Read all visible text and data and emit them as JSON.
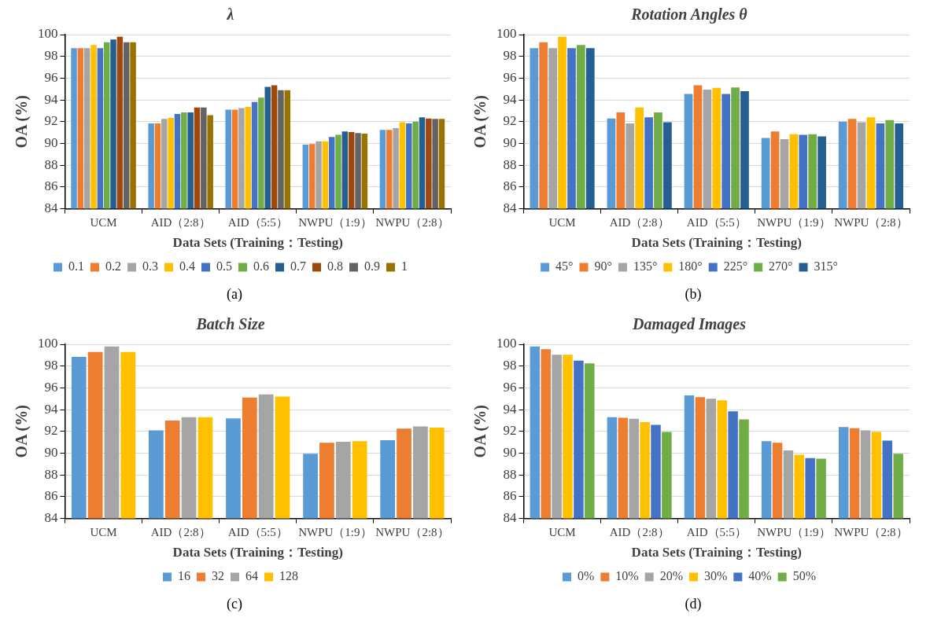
{
  "chart_data": [
    {
      "type": "bar",
      "title": "λ",
      "xlabel": "Data Sets (Training：Testing)",
      "ylabel": "OA (%)",
      "categories": [
        "UCM",
        "AID（2:8）",
        "AID（5:5）",
        "NWPU（1:9）",
        "NWPU（2:8）"
      ],
      "ylim": [
        84,
        100
      ],
      "yticks": [
        84,
        86,
        88,
        90,
        92,
        94,
        96,
        98,
        100
      ],
      "grid": "y",
      "legend": "bottom",
      "annotations": [
        "(a)"
      ],
      "series": [
        {
          "name": "0.1",
          "color": "#5b9bd5",
          "values": [
            98.75,
            91.85,
            93.1,
            89.9,
            91.25
          ]
        },
        {
          "name": "0.2",
          "color": "#ed7d31",
          "values": [
            98.75,
            91.85,
            93.1,
            89.95,
            91.25
          ]
        },
        {
          "name": "0.3",
          "color": "#a5a5a5",
          "values": [
            98.75,
            92.25,
            93.25,
            90.2,
            91.4
          ]
        },
        {
          "name": "0.4",
          "color": "#ffc000",
          "values": [
            99.05,
            92.35,
            93.35,
            90.2,
            91.95
          ]
        },
        {
          "name": "0.5",
          "color": "#4472c4",
          "values": [
            98.75,
            92.7,
            93.8,
            90.6,
            91.85
          ]
        },
        {
          "name": "0.6",
          "color": "#70ad47",
          "values": [
            99.3,
            92.85,
            94.2,
            90.8,
            92.0
          ]
        },
        {
          "name": "0.7",
          "color": "#255e91",
          "values": [
            99.55,
            92.85,
            95.2,
            91.1,
            92.4
          ]
        },
        {
          "name": "0.8",
          "color": "#9e480e",
          "values": [
            99.8,
            93.3,
            95.35,
            91.05,
            92.3
          ]
        },
        {
          "name": "0.9",
          "color": "#636363",
          "values": [
            99.3,
            93.3,
            94.9,
            90.95,
            92.25
          ]
        },
        {
          "name": "1",
          "color": "#997300",
          "values": [
            99.3,
            92.6,
            94.9,
            90.9,
            92.25
          ]
        }
      ]
    },
    {
      "type": "bar",
      "title": "Rotation Angles θ",
      "xlabel": "Data Sets (Training：Testing)",
      "ylabel": "OA (%)",
      "categories": [
        "UCM",
        "AID（2:8）",
        "AID（5:5）",
        "NWPU（1:9）",
        "NWPU（2:8）"
      ],
      "ylim": [
        84,
        100
      ],
      "yticks": [
        84,
        86,
        88,
        90,
        92,
        94,
        96,
        98,
        100
      ],
      "grid": "y",
      "legend": "bottom",
      "annotations": [
        "(b)"
      ],
      "series": [
        {
          "name": "45°",
          "color": "#5b9bd5",
          "values": [
            98.75,
            92.3,
            94.55,
            90.5,
            92.0
          ]
        },
        {
          "name": "90°",
          "color": "#ed7d31",
          "values": [
            99.3,
            92.85,
            95.35,
            91.1,
            92.25
          ]
        },
        {
          "name": "135°",
          "color": "#a5a5a5",
          "values": [
            98.75,
            91.85,
            94.95,
            90.4,
            91.95
          ]
        },
        {
          "name": "180°",
          "color": "#ffc000",
          "values": [
            99.8,
            93.3,
            95.1,
            90.85,
            92.4
          ]
        },
        {
          "name": "225°",
          "color": "#4472c4",
          "values": [
            98.75,
            92.4,
            94.55,
            90.8,
            91.85
          ]
        },
        {
          "name": "270°",
          "color": "#70ad47",
          "values": [
            99.05,
            92.85,
            95.15,
            90.85,
            92.15
          ]
        },
        {
          "name": "315°",
          "color": "#255e91",
          "values": [
            98.75,
            91.95,
            94.8,
            90.65,
            91.85
          ]
        }
      ]
    },
    {
      "type": "bar",
      "title": "Batch Size",
      "xlabel": "Data Sets (Training：Testing)",
      "ylabel": "OA (%)",
      "categories": [
        "UCM",
        "AID（2:8）",
        "AID（5:5）",
        "NWPU（1:9）",
        "NWPU（2:8）"
      ],
      "ylim": [
        84,
        100
      ],
      "yticks": [
        84,
        86,
        88,
        90,
        92,
        94,
        96,
        98,
        100
      ],
      "grid": "y",
      "legend": "bottom",
      "annotations": [
        "(c)"
      ],
      "series": [
        {
          "name": "16",
          "color": "#5b9bd5",
          "values": [
            98.85,
            92.1,
            93.2,
            89.95,
            91.2
          ]
        },
        {
          "name": "32",
          "color": "#ed7d31",
          "values": [
            99.3,
            93.0,
            95.1,
            90.95,
            92.25
          ]
        },
        {
          "name": "64",
          "color": "#a5a5a5",
          "values": [
            99.8,
            93.3,
            95.4,
            91.05,
            92.45
          ]
        },
        {
          "name": "128",
          "color": "#ffc000",
          "values": [
            99.3,
            93.3,
            95.2,
            91.1,
            92.35
          ]
        }
      ]
    },
    {
      "type": "bar",
      "title": "Damaged Images",
      "xlabel": "Data Sets (Training：Testing)",
      "ylabel": "OA (%)",
      "categories": [
        "UCM",
        "AID（2:8）",
        "AID（5:5）",
        "NWPU（1:9）",
        "NWPU（2:8）"
      ],
      "ylim": [
        84,
        100
      ],
      "yticks": [
        84,
        86,
        88,
        90,
        92,
        94,
        96,
        98,
        100
      ],
      "grid": "y",
      "legend": "bottom",
      "annotations": [
        "(d)"
      ],
      "series": [
        {
          "name": "0%",
          "color": "#5b9bd5",
          "values": [
            99.8,
            93.3,
            95.3,
            91.1,
            92.4
          ]
        },
        {
          "name": "10%",
          "color": "#ed7d31",
          "values": [
            99.55,
            93.25,
            95.15,
            90.95,
            92.3
          ]
        },
        {
          "name": "20%",
          "color": "#a5a5a5",
          "values": [
            99.05,
            93.15,
            95.0,
            90.25,
            92.1
          ]
        },
        {
          "name": "30%",
          "color": "#ffc000",
          "values": [
            99.05,
            92.85,
            94.85,
            89.85,
            91.95
          ]
        },
        {
          "name": "40%",
          "color": "#4472c4",
          "values": [
            98.5,
            92.6,
            93.85,
            89.55,
            91.15
          ]
        },
        {
          "name": "50%",
          "color": "#70ad47",
          "values": [
            98.25,
            91.95,
            93.1,
            89.5,
            89.95
          ]
        }
      ]
    }
  ]
}
